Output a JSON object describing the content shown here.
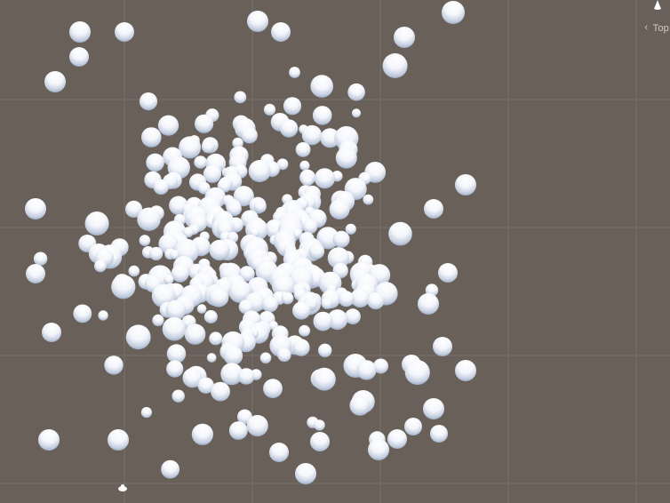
{
  "scene_view": {
    "background_color": "#696159",
    "grid_color": "#77706a",
    "sphere_highlight": "#ffffff",
    "sphere_shade": "#6f86a6"
  },
  "orientation_gizmo": {
    "label": "Top",
    "arrow_icon": "arrow-left-icon",
    "cone_icon": "axis-cone-icon"
  }
}
